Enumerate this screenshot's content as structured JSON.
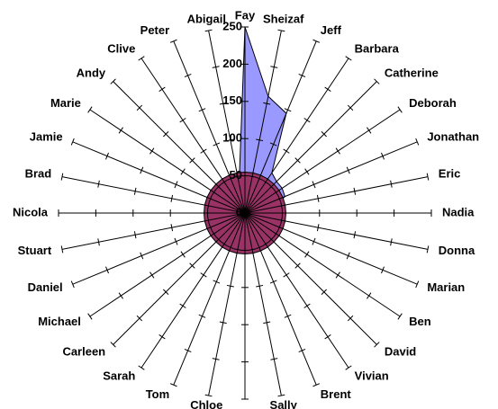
{
  "chart_data": {
    "type": "radar",
    "categories": [
      "Fay",
      "Sheizaf",
      "Jeff",
      "Barbara",
      "Catherine",
      "Deborah",
      "Jonathan",
      "Eric",
      "Nadia",
      "Donna",
      "Marian",
      "Ben",
      "David",
      "Vivian",
      "Brent",
      "Sally",
      null,
      "Chloe",
      "Tom",
      "Sarah",
      "Carleen",
      "Michael",
      "Daniel",
      "Stuart",
      "Nicola",
      "Brad",
      "Jamie",
      "Marie",
      "Andy",
      "Clive",
      "Peter",
      "Abigail"
    ],
    "series": [
      {
        "color": "#9999ff",
        "values": [
          250,
          160,
          145,
          65,
          60,
          60,
          58,
          40,
          40,
          40,
          40,
          40,
          40,
          40,
          40,
          40,
          40,
          40,
          40,
          40,
          40,
          40,
          40,
          40,
          40,
          40,
          40,
          40,
          40,
          40,
          40,
          40
        ]
      },
      {
        "color": "#993366",
        "values": [
          55,
          55,
          55,
          55,
          55,
          55,
          55,
          55,
          55,
          55,
          55,
          55,
          55,
          55,
          55,
          55,
          55,
          55,
          55,
          55,
          55,
          55,
          55,
          55,
          55,
          55,
          55,
          55,
          55,
          55,
          55,
          55
        ]
      }
    ],
    "ylim": [
      0,
      250
    ],
    "yticks": [
      0,
      50,
      100,
      150,
      200,
      250
    ]
  }
}
